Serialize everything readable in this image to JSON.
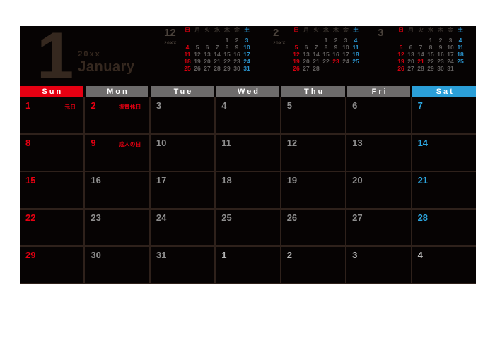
{
  "colors": {
    "page_bg": "#ffffff",
    "panel_bg": "#060303",
    "grid_line": "#2e211b",
    "title_text": "#35281f",
    "red": "#e60012",
    "blue": "#2ca6e0",
    "sun_header_bg": "#e60012",
    "weekday_header_bg": "#6d6b6b",
    "sat_header_bg": "#2b9fd8",
    "weekday_date": "#8e8e8e",
    "next_month_date": "#b5b5b5",
    "header_text": "#ffffff"
  },
  "title": {
    "month_number": "1",
    "year": "20xx",
    "month_name": "January"
  },
  "main": {
    "day_headers": [
      {
        "label": "Sun",
        "bg": "#e60012"
      },
      {
        "label": "Mon",
        "bg": "#6d6b6b"
      },
      {
        "label": "Tue",
        "bg": "#6d6b6b"
      },
      {
        "label": "Wed",
        "bg": "#6d6b6b"
      },
      {
        "label": "Thu",
        "bg": "#6d6b6b"
      },
      {
        "label": "Fri",
        "bg": "#6d6b6b"
      },
      {
        "label": "Sat",
        "bg": "#2b9fd8"
      }
    ],
    "weeks": [
      [
        {
          "d": "1",
          "t": "sun",
          "label": "元日"
        },
        {
          "d": "2",
          "t": "hol",
          "label": "振替休日"
        },
        {
          "d": "3",
          "t": "wd"
        },
        {
          "d": "4",
          "t": "wd"
        },
        {
          "d": "5",
          "t": "wd"
        },
        {
          "d": "6",
          "t": "wd"
        },
        {
          "d": "7",
          "t": "sat"
        }
      ],
      [
        {
          "d": "8",
          "t": "sun"
        },
        {
          "d": "9",
          "t": "hol",
          "label": "成人の日"
        },
        {
          "d": "10",
          "t": "wd"
        },
        {
          "d": "11",
          "t": "wd"
        },
        {
          "d": "12",
          "t": "wd"
        },
        {
          "d": "13",
          "t": "wd"
        },
        {
          "d": "14",
          "t": "sat"
        }
      ],
      [
        {
          "d": "15",
          "t": "sun"
        },
        {
          "d": "16",
          "t": "wd"
        },
        {
          "d": "17",
          "t": "wd"
        },
        {
          "d": "18",
          "t": "wd"
        },
        {
          "d": "19",
          "t": "wd"
        },
        {
          "d": "20",
          "t": "wd"
        },
        {
          "d": "21",
          "t": "sat"
        }
      ],
      [
        {
          "d": "22",
          "t": "sun"
        },
        {
          "d": "23",
          "t": "wd"
        },
        {
          "d": "24",
          "t": "wd"
        },
        {
          "d": "25",
          "t": "wd"
        },
        {
          "d": "26",
          "t": "wd"
        },
        {
          "d": "27",
          "t": "wd"
        },
        {
          "d": "28",
          "t": "sat"
        }
      ],
      [
        {
          "d": "29",
          "t": "sun"
        },
        {
          "d": "30",
          "t": "wd"
        },
        {
          "d": "31",
          "t": "wd"
        },
        {
          "d": "1",
          "t": "next"
        },
        {
          "d": "2",
          "t": "next"
        },
        {
          "d": "3",
          "t": "next"
        },
        {
          "d": "4",
          "t": "next"
        }
      ]
    ]
  },
  "mini_calendars": [
    {
      "month": "12",
      "year": "20XX",
      "day_headers": [
        "日",
        "月",
        "火",
        "水",
        "木",
        "金",
        "土"
      ],
      "holidays": [],
      "weeks": [
        [
          "",
          "",
          "",
          "",
          "1",
          "2",
          "3"
        ],
        [
          "4",
          "5",
          "6",
          "7",
          "8",
          "9",
          "10"
        ],
        [
          "11",
          "12",
          "13",
          "14",
          "15",
          "16",
          "17"
        ],
        [
          "18",
          "19",
          "20",
          "21",
          "22",
          "23",
          "24"
        ],
        [
          "25",
          "26",
          "27",
          "28",
          "29",
          "30",
          "31"
        ]
      ]
    },
    {
      "month": "2",
      "year": "20XX",
      "day_headers": [
        "日",
        "月",
        "火",
        "水",
        "木",
        "金",
        "土"
      ],
      "holidays": [
        23
      ],
      "weeks": [
        [
          "",
          "",
          "",
          "1",
          "2",
          "3",
          "4"
        ],
        [
          "5",
          "6",
          "7",
          "8",
          "9",
          "10",
          "11"
        ],
        [
          "12",
          "13",
          "14",
          "15",
          "16",
          "17",
          "18"
        ],
        [
          "19",
          "20",
          "21",
          "22",
          "23",
          "24",
          "25"
        ],
        [
          "26",
          "27",
          "28",
          "",
          "",
          "",
          ""
        ]
      ]
    },
    {
      "month": "3",
      "year": "",
      "day_headers": [
        "日",
        "月",
        "火",
        "水",
        "木",
        "金",
        "土"
      ],
      "holidays": [
        21
      ],
      "weeks": [
        [
          "",
          "",
          "",
          "1",
          "2",
          "3",
          "4"
        ],
        [
          "5",
          "6",
          "7",
          "8",
          "9",
          "10",
          "11"
        ],
        [
          "12",
          "13",
          "14",
          "15",
          "16",
          "17",
          "18"
        ],
        [
          "19",
          "20",
          "21",
          "22",
          "23",
          "24",
          "25"
        ],
        [
          "26",
          "27",
          "28",
          "29",
          "30",
          "31",
          ""
        ]
      ]
    }
  ]
}
